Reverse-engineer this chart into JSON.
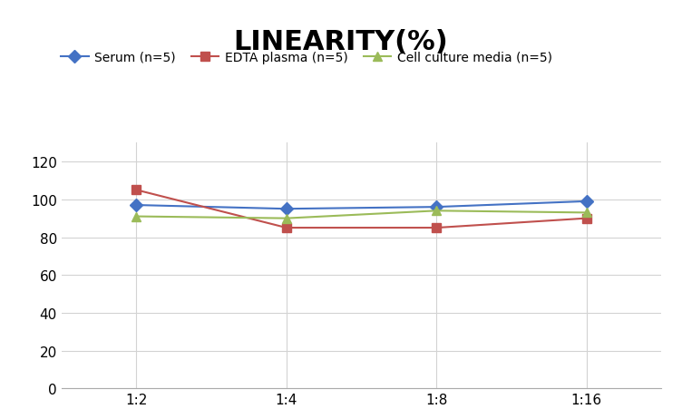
{
  "title": "LINEARITY(%)",
  "x_labels": [
    "1:2",
    "1:4",
    "1:8",
    "1:16"
  ],
  "x_values": [
    0,
    1,
    2,
    3
  ],
  "series": [
    {
      "label": "Serum (n=5)",
      "values": [
        97,
        95,
        96,
        99
      ],
      "color": "#4472C4",
      "marker": "D",
      "linewidth": 1.5
    },
    {
      "label": "EDTA plasma (n=5)",
      "values": [
        105,
        85,
        85,
        90
      ],
      "color": "#C0504D",
      "marker": "s",
      "linewidth": 1.5
    },
    {
      "label": "Cell culture media (n=5)",
      "values": [
        91,
        90,
        94,
        93
      ],
      "color": "#9BBB59",
      "marker": "^",
      "linewidth": 1.5
    }
  ],
  "ylim": [
    0,
    130
  ],
  "yticks": [
    0,
    20,
    40,
    60,
    80,
    100,
    120
  ],
  "background_color": "#ffffff",
  "grid_color": "#d3d3d3",
  "title_fontsize": 22,
  "title_fontweight": "bold",
  "legend_fontsize": 10,
  "tick_fontsize": 11
}
